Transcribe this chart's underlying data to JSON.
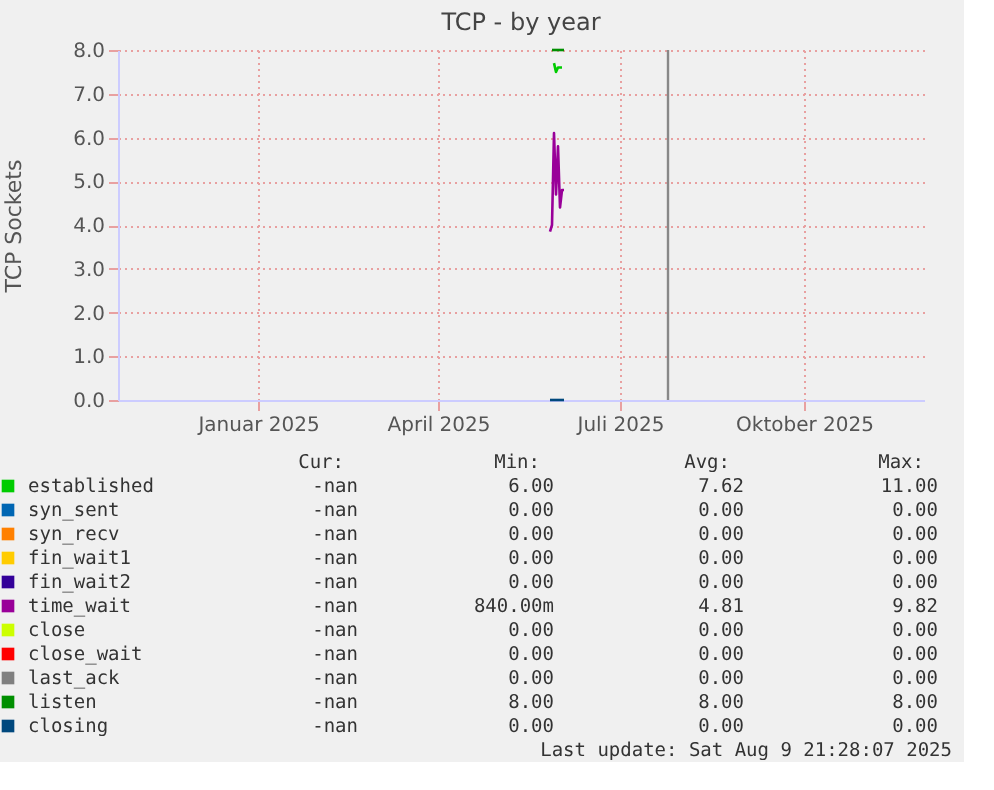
{
  "chart_data": {
    "type": "line",
    "title": "TCP - by year",
    "ylabel": "TCP Sockets",
    "x": [
      "2025-05-27",
      "2025-05-28",
      "2025-05-29",
      "2025-05-30",
      "2025-05-31",
      "2025-06-01",
      "2025-06-02",
      "2025-06-03"
    ],
    "xlim": [
      "2024-10-23",
      "2025-11-30"
    ],
    "xticks": [
      {
        "value": "2025-01-01",
        "label": "Januar 2025"
      },
      {
        "value": "2025-04-01",
        "label": "April 2025"
      },
      {
        "value": "2025-07-01",
        "label": "Juli 2025"
      },
      {
        "value": "2025-10-01",
        "label": "Oktober 2025"
      }
    ],
    "ylim": [
      0,
      8
    ],
    "yticks": [
      {
        "value": 0,
        "label": "0.0"
      },
      {
        "value": 1,
        "label": "1.0"
      },
      {
        "value": 2,
        "label": "2.0"
      },
      {
        "value": 3,
        "label": "3.0"
      },
      {
        "value": 4,
        "label": "4.0"
      },
      {
        "value": 5,
        "label": "5.0"
      },
      {
        "value": 6,
        "label": "6.0"
      },
      {
        "value": 7,
        "label": "7.0"
      },
      {
        "value": 8,
        "label": "8.0"
      }
    ],
    "series": [
      {
        "name": "established",
        "color": "#00cc00",
        "values": [
          null,
          null,
          7.7,
          7.5,
          7.6,
          7.6,
          7.6,
          null
        ]
      },
      {
        "name": "syn_sent",
        "color": "#0066b3",
        "values": [
          null,
          null,
          null,
          null,
          null,
          null,
          null,
          null
        ]
      },
      {
        "name": "syn_recv",
        "color": "#ff8000",
        "values": [
          null,
          null,
          null,
          null,
          null,
          null,
          null,
          null
        ]
      },
      {
        "name": "fin_wait1",
        "color": "#ffcc00",
        "values": [
          null,
          null,
          null,
          null,
          null,
          null,
          null,
          null
        ]
      },
      {
        "name": "fin_wait2",
        "color": "#330099",
        "values": [
          null,
          null,
          null,
          null,
          null,
          null,
          null,
          null
        ]
      },
      {
        "name": "time_wait",
        "color": "#990099",
        "values": [
          3.85,
          4.0,
          6.1,
          4.7,
          5.8,
          4.4,
          4.8,
          4.8
        ]
      },
      {
        "name": "close",
        "color": "#ccff00",
        "values": [
          null,
          null,
          null,
          null,
          null,
          null,
          null,
          null
        ]
      },
      {
        "name": "close_wait",
        "color": "#ff0000",
        "values": [
          null,
          null,
          null,
          null,
          null,
          null,
          null,
          null
        ]
      },
      {
        "name": "last_ack",
        "color": "#808080",
        "values": [
          null,
          null,
          null,
          null,
          null,
          null,
          null,
          null
        ]
      },
      {
        "name": "listen",
        "color": "#008f00",
        "values": [
          null,
          8,
          8,
          8,
          8,
          8,
          8,
          8
        ]
      },
      {
        "name": "closing",
        "color": "#00487d",
        "values": [
          0,
          0,
          0,
          0,
          0,
          0,
          0,
          0
        ]
      }
    ],
    "ref_lines": [
      {
        "axis": "x",
        "value": "2025-07-25",
        "color": "#888888"
      }
    ],
    "annotations": [
      "Cur: Min: Avg: Max:",
      "-nan 6.00 7.62 11.00",
      "-nan 0.00 0.00 0.00",
      "-nan 0.00 0.00 0.00",
      "-nan 0.00 0.00 0.00",
      "-nan 0.00 0.00 0.00",
      "-nan 840.00m 4.81 9.82",
      "-nan 0.00 0.00 0.00",
      "-nan 0.00 0.00 0.00",
      "-nan 0.00 0.00 0.00",
      "-nan 8.00 8.00 8.00",
      "-nan 0.00 0.00 0.00",
      "Last update: Sat Aug  9 21:28:07 2025"
    ],
    "grid": true,
    "legend": "bottom"
  }
}
